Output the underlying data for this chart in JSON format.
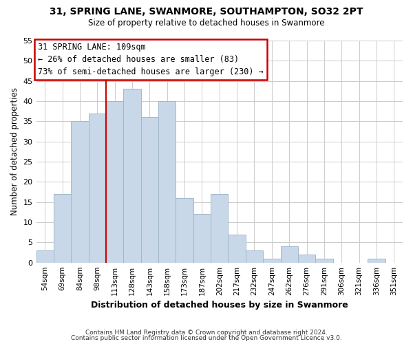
{
  "title": "31, SPRING LANE, SWANMORE, SOUTHAMPTON, SO32 2PT",
  "subtitle": "Size of property relative to detached houses in Swanmore",
  "xlabel": "Distribution of detached houses by size in Swanmore",
  "ylabel": "Number of detached properties",
  "bar_labels": [
    "54sqm",
    "69sqm",
    "84sqm",
    "98sqm",
    "113sqm",
    "128sqm",
    "143sqm",
    "158sqm",
    "173sqm",
    "187sqm",
    "202sqm",
    "217sqm",
    "232sqm",
    "247sqm",
    "262sqm",
    "276sqm",
    "291sqm",
    "306sqm",
    "321sqm",
    "336sqm",
    "351sqm"
  ],
  "bar_values": [
    3,
    17,
    35,
    37,
    40,
    43,
    36,
    40,
    16,
    12,
    17,
    7,
    3,
    1,
    4,
    2,
    1,
    0,
    0,
    1,
    0
  ],
  "bar_color": "#c8d8e8",
  "bar_edge_color": "#a0b8cc",
  "vline_x": 3.5,
  "vline_color": "#cc0000",
  "annotation_title": "31 SPRING LANE: 109sqm",
  "annotation_line1": "← 26% of detached houses are smaller (83)",
  "annotation_line2": "73% of semi-detached houses are larger (230) →",
  "annotation_box_color": "#ffffff",
  "annotation_box_edge": "#cc0000",
  "ylim": [
    0,
    55
  ],
  "yticks": [
    0,
    5,
    10,
    15,
    20,
    25,
    30,
    35,
    40,
    45,
    50,
    55
  ],
  "footer1": "Contains HM Land Registry data © Crown copyright and database right 2024.",
  "footer2": "Contains public sector information licensed under the Open Government Licence v3.0."
}
